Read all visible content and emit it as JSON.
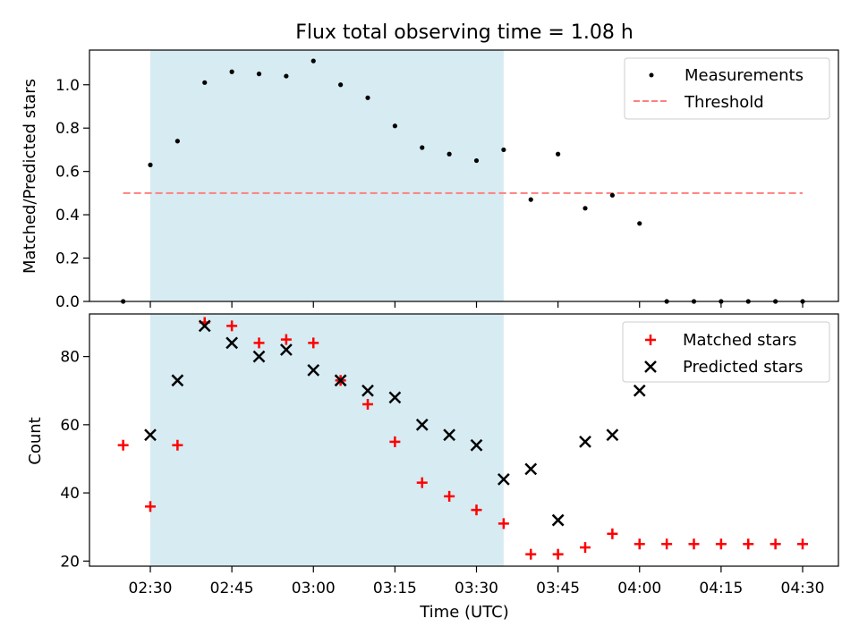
{
  "title": "Flux total observing time = 1.08 h",
  "xlabel": "Time (UTC)",
  "x_ticks": [
    "02:30",
    "02:45",
    "03:00",
    "03:15",
    "03:30",
    "03:45",
    "04:00",
    "04:15",
    "04:30"
  ],
  "shaded_interval": {
    "start": "02:30",
    "end": "03:35",
    "color": "#add8e6"
  },
  "colors": {
    "measurements": "#000000",
    "threshold": "#ff7f7f",
    "matched": "#ff0000",
    "predicted": "#000000"
  },
  "chart_data": [
    {
      "type": "scatter",
      "ylabel": "Matched/Predicted stars",
      "ylim": [
        0,
        1.16
      ],
      "y_ticks": [
        0.0,
        0.2,
        0.4,
        0.6,
        0.8,
        1.0
      ],
      "y_tick_labels": [
        "0.0",
        "0.2",
        "0.4",
        "0.6",
        "0.8",
        "1.0"
      ],
      "legend": {
        "position": "top-right",
        "entries": [
          {
            "label": "Measurements",
            "marker": "dot"
          },
          {
            "label": "Threshold",
            "marker": "dashed-line"
          }
        ]
      },
      "threshold": {
        "value": 0.5,
        "x_start": "02:25",
        "x_end": "04:30"
      },
      "series": [
        {
          "name": "Measurements",
          "points": [
            {
              "x": "02:25",
              "y": 0.0
            },
            {
              "x": "02:30",
              "y": 0.63
            },
            {
              "x": "02:35",
              "y": 0.74
            },
            {
              "x": "02:40",
              "y": 1.01
            },
            {
              "x": "02:45",
              "y": 1.06
            },
            {
              "x": "02:50",
              "y": 1.05
            },
            {
              "x": "02:55",
              "y": 1.04
            },
            {
              "x": "03:00",
              "y": 1.11
            },
            {
              "x": "03:05",
              "y": 1.0
            },
            {
              "x": "03:10",
              "y": 0.94
            },
            {
              "x": "03:15",
              "y": 0.81
            },
            {
              "x": "03:20",
              "y": 0.71
            },
            {
              "x": "03:25",
              "y": 0.68
            },
            {
              "x": "03:30",
              "y": 0.65
            },
            {
              "x": "03:35",
              "y": 0.7
            },
            {
              "x": "03:40",
              "y": 0.47
            },
            {
              "x": "03:45",
              "y": 0.68
            },
            {
              "x": "03:50",
              "y": 0.43
            },
            {
              "x": "03:55",
              "y": 0.49
            },
            {
              "x": "04:00",
              "y": 0.36
            },
            {
              "x": "04:05",
              "y": 0.0
            },
            {
              "x": "04:10",
              "y": 0.0
            },
            {
              "x": "04:15",
              "y": 0.0
            },
            {
              "x": "04:20",
              "y": 0.0
            },
            {
              "x": "04:25",
              "y": 0.0
            },
            {
              "x": "04:30",
              "y": 0.0
            }
          ]
        }
      ]
    },
    {
      "type": "scatter",
      "ylabel": "Count",
      "ylim": [
        18.5,
        92.5
      ],
      "y_ticks": [
        20,
        40,
        60,
        80
      ],
      "y_tick_labels": [
        "20",
        "40",
        "60",
        "80"
      ],
      "legend": {
        "position": "top-right",
        "entries": [
          {
            "label": "Matched stars",
            "marker": "plus"
          },
          {
            "label": "Predicted stars",
            "marker": "x"
          }
        ]
      },
      "series": [
        {
          "name": "Matched stars",
          "points": [
            {
              "x": "02:25",
              "y": 54
            },
            {
              "x": "02:30",
              "y": 36
            },
            {
              "x": "02:35",
              "y": 54
            },
            {
              "x": "02:40",
              "y": 90
            },
            {
              "x": "02:45",
              "y": 89
            },
            {
              "x": "02:50",
              "y": 84
            },
            {
              "x": "02:55",
              "y": 85
            },
            {
              "x": "03:00",
              "y": 84
            },
            {
              "x": "03:05",
              "y": 73
            },
            {
              "x": "03:10",
              "y": 66
            },
            {
              "x": "03:15",
              "y": 55
            },
            {
              "x": "03:20",
              "y": 43
            },
            {
              "x": "03:25",
              "y": 39
            },
            {
              "x": "03:30",
              "y": 35
            },
            {
              "x": "03:35",
              "y": 31
            },
            {
              "x": "03:40",
              "y": 22
            },
            {
              "x": "03:45",
              "y": 22
            },
            {
              "x": "03:50",
              "y": 24
            },
            {
              "x": "03:55",
              "y": 28
            },
            {
              "x": "04:00",
              "y": 25
            },
            {
              "x": "04:05",
              "y": 25
            },
            {
              "x": "04:10",
              "y": 25
            },
            {
              "x": "04:15",
              "y": 25
            },
            {
              "x": "04:20",
              "y": 25
            },
            {
              "x": "04:25",
              "y": 25
            },
            {
              "x": "04:30",
              "y": 25
            }
          ]
        },
        {
          "name": "Predicted stars",
          "points": [
            {
              "x": "02:30",
              "y": 57
            },
            {
              "x": "02:35",
              "y": 73
            },
            {
              "x": "02:40",
              "y": 89
            },
            {
              "x": "02:45",
              "y": 84
            },
            {
              "x": "02:50",
              "y": 80
            },
            {
              "x": "02:55",
              "y": 82
            },
            {
              "x": "03:00",
              "y": 76
            },
            {
              "x": "03:05",
              "y": 73
            },
            {
              "x": "03:10",
              "y": 70
            },
            {
              "x": "03:15",
              "y": 68
            },
            {
              "x": "03:20",
              "y": 60
            },
            {
              "x": "03:25",
              "y": 57
            },
            {
              "x": "03:30",
              "y": 54
            },
            {
              "x": "03:35",
              "y": 44
            },
            {
              "x": "03:40",
              "y": 47
            },
            {
              "x": "03:45",
              "y": 32
            },
            {
              "x": "03:50",
              "y": 55
            },
            {
              "x": "03:55",
              "y": 57
            },
            {
              "x": "04:00",
              "y": 70
            }
          ]
        }
      ]
    }
  ]
}
